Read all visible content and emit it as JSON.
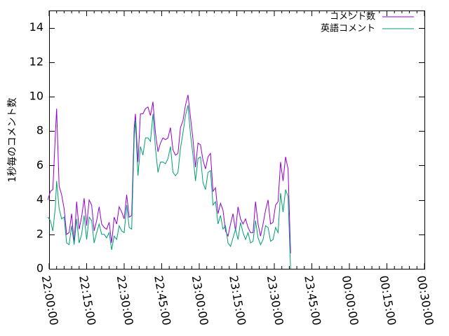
{
  "chart_data": {
    "type": "line",
    "ylabel": "1秒毎のコメント数",
    "xlabel": "",
    "ylim": [
      0,
      15
    ],
    "yticks": [
      0,
      2,
      4,
      6,
      8,
      10,
      12,
      14
    ],
    "xlim": [
      "22:00:00",
      "00:30:00"
    ],
    "xtick_labels": [
      "22:00:00",
      "22:15:00",
      "22:30:00",
      "22:45:00",
      "23:00:00",
      "23:15:00",
      "23:30:00",
      "23:45:00",
      "00:00:00",
      "00:15:00",
      "00:30:00"
    ],
    "grid": false,
    "legend_position": "top-right",
    "series": [
      {
        "name": "コメント数",
        "color": "#9400d3",
        "points": [
          [
            "21:59:30",
            4.0
          ],
          [
            "22:00:30",
            4.5
          ],
          [
            "22:01:30",
            4.6
          ],
          [
            "22:02:30",
            7.8
          ],
          [
            "22:03:00",
            9.3
          ],
          [
            "22:04:00",
            4.8
          ],
          [
            "22:05:00",
            4.3
          ],
          [
            "22:06:00",
            3.5
          ],
          [
            "22:07:00",
            2.0
          ],
          [
            "22:08:00",
            2.1
          ],
          [
            "22:09:00",
            3.2
          ],
          [
            "22:10:00",
            1.5
          ],
          [
            "22:11:00",
            3.9
          ],
          [
            "22:12:00",
            2.3
          ],
          [
            "22:13:00",
            3.0
          ],
          [
            "22:14:00",
            4.1
          ],
          [
            "22:15:00",
            2.5
          ],
          [
            "22:16:00",
            4.0
          ],
          [
            "22:17:00",
            3.7
          ],
          [
            "22:18:00",
            2.2
          ],
          [
            "22:19:00",
            2.8
          ],
          [
            "22:20:00",
            3.6
          ],
          [
            "22:21:00",
            2.6
          ],
          [
            "22:22:00",
            2.4
          ],
          [
            "22:23:00",
            2.3
          ],
          [
            "22:24:00",
            2.7
          ],
          [
            "22:25:00",
            1.5
          ],
          [
            "22:26:00",
            3.0
          ],
          [
            "22:27:00",
            2.6
          ],
          [
            "22:28:00",
            3.6
          ],
          [
            "22:29:00",
            3.3
          ],
          [
            "22:30:00",
            2.9
          ],
          [
            "22:31:00",
            4.3
          ],
          [
            "22:32:00",
            3.0
          ],
          [
            "22:33:00",
            3.1
          ],
          [
            "22:34:00",
            8.2
          ],
          [
            "22:34:30",
            9.0
          ],
          [
            "22:35:30",
            6.2
          ],
          [
            "22:36:30",
            9.0
          ],
          [
            "22:37:30",
            9.0
          ],
          [
            "22:38:30",
            9.3
          ],
          [
            "22:39:30",
            9.4
          ],
          [
            "22:40:30",
            8.9
          ],
          [
            "22:41:30",
            9.7
          ],
          [
            "22:42:30",
            7.9
          ],
          [
            "22:43:30",
            6.8
          ],
          [
            "22:44:30",
            7.3
          ],
          [
            "22:45:30",
            7.6
          ],
          [
            "22:46:30",
            7.5
          ],
          [
            "22:47:30",
            7.6
          ],
          [
            "22:48:30",
            8.2
          ],
          [
            "22:49:30",
            6.9
          ],
          [
            "22:50:30",
            6.6
          ],
          [
            "22:51:30",
            6.7
          ],
          [
            "22:52:30",
            8.2
          ],
          [
            "22:53:30",
            8.6
          ],
          [
            "22:54:30",
            9.5
          ],
          [
            "22:55:30",
            10.1
          ],
          [
            "22:56:30",
            8.8
          ],
          [
            "22:57:30",
            7.5
          ],
          [
            "22:58:30",
            5.9
          ],
          [
            "22:59:30",
            7.3
          ],
          [
            "23:00:30",
            7.2
          ],
          [
            "23:01:30",
            6.3
          ],
          [
            "23:02:30",
            5.8
          ],
          [
            "23:03:30",
            6.5
          ],
          [
            "23:04:30",
            6.7
          ],
          [
            "23:05:30",
            4.5
          ],
          [
            "23:06:30",
            4.7
          ],
          [
            "23:07:30",
            3.2
          ],
          [
            "23:08:30",
            3.8
          ],
          [
            "23:09:30",
            3.4
          ],
          [
            "23:10:30",
            2.2
          ],
          [
            "23:11:30",
            1.9
          ],
          [
            "23:12:30",
            2.6
          ],
          [
            "23:13:30",
            3.2
          ],
          [
            "23:14:30",
            2.2
          ],
          [
            "23:15:30",
            3.6
          ],
          [
            "23:16:30",
            2.9
          ],
          [
            "23:17:30",
            2.6
          ],
          [
            "23:18:30",
            2.9
          ],
          [
            "23:19:30",
            2.4
          ],
          [
            "23:20:30",
            2.1
          ],
          [
            "23:21:30",
            2.1
          ],
          [
            "23:22:30",
            3.9
          ],
          [
            "23:23:30",
            2.6
          ],
          [
            "23:24:30",
            1.9
          ],
          [
            "23:25:30",
            2.6
          ],
          [
            "23:26:30",
            3.4
          ],
          [
            "23:27:30",
            4.0
          ],
          [
            "23:28:30",
            2.6
          ],
          [
            "23:29:30",
            2.7
          ],
          [
            "23:30:30",
            3.7
          ],
          [
            "23:31:30",
            3.9
          ],
          [
            "23:32:30",
            6.2
          ],
          [
            "23:33:30",
            5.1
          ],
          [
            "23:34:30",
            6.5
          ],
          [
            "23:35:30",
            5.8
          ],
          [
            "23:36:30",
            0.9
          ]
        ]
      },
      {
        "name": "英語コメント",
        "color": "#009e73",
        "points": [
          [
            "21:59:30",
            3.0
          ],
          [
            "22:00:30",
            2.8
          ],
          [
            "22:01:30",
            2.2
          ],
          [
            "22:02:30",
            3.6
          ],
          [
            "22:03:00",
            5.1
          ],
          [
            "22:04:00",
            3.5
          ],
          [
            "22:05:00",
            2.9
          ],
          [
            "22:06:00",
            3.0
          ],
          [
            "22:07:00",
            1.5
          ],
          [
            "22:08:00",
            1.4
          ],
          [
            "22:09:00",
            2.5
          ],
          [
            "22:10:00",
            1.4
          ],
          [
            "22:11:00",
            2.9
          ],
          [
            "22:12:00",
            1.5
          ],
          [
            "22:13:00",
            2.0
          ],
          [
            "22:14:00",
            3.1
          ],
          [
            "22:15:00",
            1.7
          ],
          [
            "22:16:00",
            3.0
          ],
          [
            "22:17:00",
            2.8
          ],
          [
            "22:18:00",
            1.5
          ],
          [
            "22:19:00",
            2.1
          ],
          [
            "22:20:00",
            2.6
          ],
          [
            "22:21:00",
            2.0
          ],
          [
            "22:22:00",
            2.0
          ],
          [
            "22:23:00",
            1.8
          ],
          [
            "22:24:00",
            2.1
          ],
          [
            "22:25:00",
            1.1
          ],
          [
            "22:26:00",
            1.9
          ],
          [
            "22:27:00",
            1.7
          ],
          [
            "22:28:00",
            2.5
          ],
          [
            "22:29:00",
            2.2
          ],
          [
            "22:30:00",
            2.1
          ],
          [
            "22:31:00",
            3.7
          ],
          [
            "22:32:00",
            2.4
          ],
          [
            "22:33:00",
            2.3
          ],
          [
            "22:34:00",
            7.6
          ],
          [
            "22:34:30",
            8.6
          ],
          [
            "22:35:30",
            5.4
          ],
          [
            "22:36:30",
            7.1
          ],
          [
            "22:37:30",
            6.6
          ],
          [
            "22:38:30",
            7.6
          ],
          [
            "22:39:30",
            7.6
          ],
          [
            "22:40:30",
            7.4
          ],
          [
            "22:41:30",
            9.0
          ],
          [
            "22:42:30",
            7.0
          ],
          [
            "22:43:30",
            5.6
          ],
          [
            "22:44:30",
            6.2
          ],
          [
            "22:45:30",
            6.2
          ],
          [
            "22:46:30",
            6.1
          ],
          [
            "22:47:30",
            6.4
          ],
          [
            "22:48:30",
            7.1
          ],
          [
            "22:49:30",
            5.6
          ],
          [
            "22:50:30",
            5.4
          ],
          [
            "22:51:30",
            5.6
          ],
          [
            "22:52:30",
            7.0
          ],
          [
            "22:53:30",
            7.9
          ],
          [
            "22:54:30",
            8.9
          ],
          [
            "22:55:30",
            9.5
          ],
          [
            "22:56:30",
            7.8
          ],
          [
            "22:57:30",
            6.6
          ],
          [
            "22:58:30",
            5.1
          ],
          [
            "22:59:30",
            6.4
          ],
          [
            "23:00:30",
            6.5
          ],
          [
            "23:01:30",
            5.0
          ],
          [
            "23:02:30",
            4.6
          ],
          [
            "23:03:30",
            5.6
          ],
          [
            "23:04:30",
            5.7
          ],
          [
            "23:05:30",
            3.7
          ],
          [
            "23:06:30",
            3.9
          ],
          [
            "23:07:30",
            2.6
          ],
          [
            "23:08:30",
            3.1
          ],
          [
            "23:09:30",
            2.3
          ],
          [
            "23:10:30",
            2.5
          ],
          [
            "23:11:30",
            1.5
          ],
          [
            "23:12:30",
            1.3
          ],
          [
            "23:13:30",
            1.8
          ],
          [
            "23:14:30",
            2.3
          ],
          [
            "23:15:30",
            1.7
          ],
          [
            "23:16:30",
            2.7
          ],
          [
            "23:17:30",
            2.1
          ],
          [
            "23:18:30",
            1.7
          ],
          [
            "23:19:30",
            2.1
          ],
          [
            "23:20:30",
            1.5
          ],
          [
            "23:21:30",
            1.6
          ],
          [
            "23:22:30",
            2.8
          ],
          [
            "23:23:30",
            1.8
          ],
          [
            "23:24:30",
            1.4
          ],
          [
            "23:25:30",
            1.7
          ],
          [
            "23:26:30",
            2.5
          ],
          [
            "23:27:30",
            2.4
          ],
          [
            "23:28:30",
            1.6
          ],
          [
            "23:29:30",
            1.7
          ],
          [
            "23:30:30",
            2.4
          ],
          [
            "23:31:30",
            2.1
          ],
          [
            "23:32:30",
            4.4
          ],
          [
            "23:33:30",
            3.3
          ],
          [
            "23:34:30",
            4.6
          ],
          [
            "23:35:30",
            4.2
          ],
          [
            "23:36:30",
            0.0
          ]
        ]
      }
    ]
  }
}
